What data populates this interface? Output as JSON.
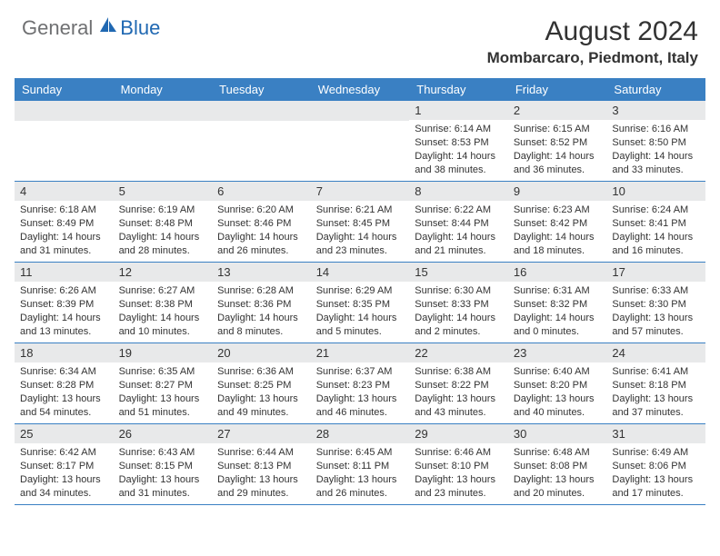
{
  "logo": {
    "text_general": "General",
    "text_blue": "Blue",
    "icon_color": "#2068b2"
  },
  "header": {
    "month_title": "August 2024",
    "location": "Mombarcaro, Piedmont, Italy"
  },
  "colors": {
    "header_bg": "#3a80c3",
    "header_text": "#ffffff",
    "day_number_bg": "#e8e9ea",
    "text": "#333333",
    "border": "#3a80c3",
    "logo_gray": "#6f7072",
    "logo_blue": "#2068b2"
  },
  "day_names": [
    "Sunday",
    "Monday",
    "Tuesday",
    "Wednesday",
    "Thursday",
    "Friday",
    "Saturday"
  ],
  "weeks": [
    [
      null,
      null,
      null,
      null,
      {
        "n": "1",
        "sr": "6:14 AM",
        "ss": "8:53 PM",
        "dh": "14",
        "dm": "38"
      },
      {
        "n": "2",
        "sr": "6:15 AM",
        "ss": "8:52 PM",
        "dh": "14",
        "dm": "36"
      },
      {
        "n": "3",
        "sr": "6:16 AM",
        "ss": "8:50 PM",
        "dh": "14",
        "dm": "33"
      }
    ],
    [
      {
        "n": "4",
        "sr": "6:18 AM",
        "ss": "8:49 PM",
        "dh": "14",
        "dm": "31"
      },
      {
        "n": "5",
        "sr": "6:19 AM",
        "ss": "8:48 PM",
        "dh": "14",
        "dm": "28"
      },
      {
        "n": "6",
        "sr": "6:20 AM",
        "ss": "8:46 PM",
        "dh": "14",
        "dm": "26"
      },
      {
        "n": "7",
        "sr": "6:21 AM",
        "ss": "8:45 PM",
        "dh": "14",
        "dm": "23"
      },
      {
        "n": "8",
        "sr": "6:22 AM",
        "ss": "8:44 PM",
        "dh": "14",
        "dm": "21"
      },
      {
        "n": "9",
        "sr": "6:23 AM",
        "ss": "8:42 PM",
        "dh": "14",
        "dm": "18"
      },
      {
        "n": "10",
        "sr": "6:24 AM",
        "ss": "8:41 PM",
        "dh": "14",
        "dm": "16"
      }
    ],
    [
      {
        "n": "11",
        "sr": "6:26 AM",
        "ss": "8:39 PM",
        "dh": "14",
        "dm": "13"
      },
      {
        "n": "12",
        "sr": "6:27 AM",
        "ss": "8:38 PM",
        "dh": "14",
        "dm": "10"
      },
      {
        "n": "13",
        "sr": "6:28 AM",
        "ss": "8:36 PM",
        "dh": "14",
        "dm": "8"
      },
      {
        "n": "14",
        "sr": "6:29 AM",
        "ss": "8:35 PM",
        "dh": "14",
        "dm": "5"
      },
      {
        "n": "15",
        "sr": "6:30 AM",
        "ss": "8:33 PM",
        "dh": "14",
        "dm": "2"
      },
      {
        "n": "16",
        "sr": "6:31 AM",
        "ss": "8:32 PM",
        "dh": "14",
        "dm": "0"
      },
      {
        "n": "17",
        "sr": "6:33 AM",
        "ss": "8:30 PM",
        "dh": "13",
        "dm": "57"
      }
    ],
    [
      {
        "n": "18",
        "sr": "6:34 AM",
        "ss": "8:28 PM",
        "dh": "13",
        "dm": "54"
      },
      {
        "n": "19",
        "sr": "6:35 AM",
        "ss": "8:27 PM",
        "dh": "13",
        "dm": "51"
      },
      {
        "n": "20",
        "sr": "6:36 AM",
        "ss": "8:25 PM",
        "dh": "13",
        "dm": "49"
      },
      {
        "n": "21",
        "sr": "6:37 AM",
        "ss": "8:23 PM",
        "dh": "13",
        "dm": "46"
      },
      {
        "n": "22",
        "sr": "6:38 AM",
        "ss": "8:22 PM",
        "dh": "13",
        "dm": "43"
      },
      {
        "n": "23",
        "sr": "6:40 AM",
        "ss": "8:20 PM",
        "dh": "13",
        "dm": "40"
      },
      {
        "n": "24",
        "sr": "6:41 AM",
        "ss": "8:18 PM",
        "dh": "13",
        "dm": "37"
      }
    ],
    [
      {
        "n": "25",
        "sr": "6:42 AM",
        "ss": "8:17 PM",
        "dh": "13",
        "dm": "34"
      },
      {
        "n": "26",
        "sr": "6:43 AM",
        "ss": "8:15 PM",
        "dh": "13",
        "dm": "31"
      },
      {
        "n": "27",
        "sr": "6:44 AM",
        "ss": "8:13 PM",
        "dh": "13",
        "dm": "29"
      },
      {
        "n": "28",
        "sr": "6:45 AM",
        "ss": "8:11 PM",
        "dh": "13",
        "dm": "26"
      },
      {
        "n": "29",
        "sr": "6:46 AM",
        "ss": "8:10 PM",
        "dh": "13",
        "dm": "23"
      },
      {
        "n": "30",
        "sr": "6:48 AM",
        "ss": "8:08 PM",
        "dh": "13",
        "dm": "20"
      },
      {
        "n": "31",
        "sr": "6:49 AM",
        "ss": "8:06 PM",
        "dh": "13",
        "dm": "17"
      }
    ]
  ],
  "labels": {
    "sunrise": "Sunrise:",
    "sunset": "Sunset:",
    "daylight_prefix": "Daylight:",
    "hours_word": "hours",
    "and_word": "and",
    "minutes_word": "minutes."
  }
}
